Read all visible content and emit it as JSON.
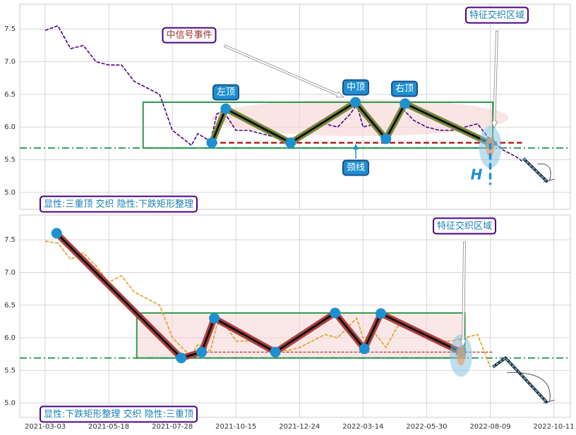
{
  "chart_data": [
    {
      "type": "pattern-line",
      "x": [
        0,
        10,
        20,
        30,
        40,
        50,
        60,
        70,
        80,
        90,
        100,
        110,
        115,
        120,
        130,
        135,
        140,
        150,
        160,
        170,
        180,
        190,
        200,
        210,
        220,
        230,
        240,
        245,
        250,
        260,
        268,
        275,
        280,
        290,
        300,
        310,
        320,
        330,
        340,
        350,
        360,
        370,
        375
      ],
      "values": [
        7.48,
        7.55,
        7.2,
        7.25,
        7.0,
        6.95,
        6.95,
        6.7,
        6.6,
        6.5,
        5.95,
        5.8,
        5.72,
        5.9,
        5.78,
        6.2,
        6.25,
        5.95,
        5.95,
        5.9,
        5.85,
        5.8,
        5.85,
        5.95,
        6.05,
        6.0,
        6.2,
        6.35,
        6.0,
        6.05,
        5.85,
        6.1,
        6.3,
        6.1,
        6.0,
        5.95,
        5.95,
        6.0,
        6.05,
        5.8,
        5.65,
        5.55,
        5.48
      ],
      "color": "#4b0082",
      "pattern": {
        "x": [
          131,
          142,
          193,
          244,
          268,
          283,
          350
        ],
        "values": [
          5.76,
          6.28,
          5.76,
          6.38,
          5.82,
          6.36,
          5.75
        ],
        "color": "#7a8a3a"
      },
      "rect": {
        "xlim": [
          77,
          352
        ],
        "ylim": [
          5.68,
          6.38
        ]
      },
      "support": 5.68,
      "neckline": {
        "xlim": [
          131,
          375
        ],
        "value": 5.76
      },
      "projection": {
        "x": [
          376,
          395
        ],
        "values": [
          5.52,
          5.16
        ]
      },
      "xlim": [
        -20,
        413
      ],
      "ylim": [
        4.74,
        7.88
      ],
      "yticks": [
        {
          "value": 5,
          "label": "5.0"
        },
        5.5,
        {
          "value": 6,
          "label": "6.0"
        },
        6.5,
        {
          "value": 7,
          "label": "7.0"
        },
        7.5
      ],
      "signal_label": "中信号事件",
      "left_top": "左顶",
      "mid_top": "中顶",
      "right_top": "右顶",
      "neck_label": "颈线",
      "zone_label": "特征交织区域",
      "height_label": "H",
      "caption": "显性:三重顶 交织 隐性:下跌矩形整理"
    },
    {
      "type": "pattern-line",
      "x": [
        0,
        10,
        20,
        30,
        40,
        50,
        60,
        70,
        80,
        90,
        100,
        110,
        115,
        120,
        130,
        135,
        140,
        150,
        160,
        170,
        180,
        190,
        200,
        210,
        220,
        230,
        240,
        245,
        250,
        260,
        268,
        275,
        280,
        290,
        300,
        310,
        320,
        330,
        340,
        350
      ],
      "values": [
        7.48,
        7.45,
        7.2,
        7.3,
        7.1,
        6.85,
        6.95,
        6.7,
        6.6,
        6.5,
        6.0,
        5.8,
        5.72,
        5.9,
        5.8,
        6.2,
        6.25,
        5.95,
        5.95,
        5.9,
        5.85,
        5.8,
        5.85,
        5.95,
        6.05,
        6.0,
        6.2,
        6.3,
        6.0,
        6.05,
        5.85,
        6.1,
        6.25,
        6.1,
        6.0,
        5.95,
        5.95,
        6.0,
        6.05,
        5.55
      ],
      "color": "#e0a020",
      "pattern": {
        "x": [
          9,
          107,
          123,
          133,
          181,
          228,
          251,
          264,
          327
        ],
        "values": [
          7.6,
          5.69,
          5.78,
          6.3,
          5.78,
          6.38,
          5.83,
          6.37,
          5.78
        ],
        "color": "#b0413e"
      },
      "rect": {
        "xlim": [
          72,
          330
        ],
        "ylim": [
          5.69,
          6.38
        ]
      },
      "support": 5.69,
      "neckline": {
        "xlim": [
          123,
          352
        ],
        "value": 5.78
      },
      "projection": {
        "x": [
          352,
          362,
          395
        ],
        "values": [
          5.55,
          5.69,
          5.0
        ]
      },
      "xlim": [
        -20,
        413
      ],
      "ylim": [
        4.78,
        7.88
      ],
      "yticks": [
        {
          "value": 5,
          "label": "5.0"
        },
        5.5,
        {
          "value": 6,
          "label": "6.0"
        },
        6.5,
        {
          "value": 7,
          "label": "7.0"
        },
        7.5
      ],
      "xticks": [
        {
          "value": 0,
          "label": "2021-03-03"
        },
        {
          "value": 50,
          "label": "2021-05-18"
        },
        {
          "value": 100,
          "label": "2021-07-28"
        },
        {
          "value": 150,
          "label": "2021-10-15"
        },
        {
          "value": 200,
          "label": "2021-12-24"
        },
        {
          "value": 250,
          "label": "2022-03-14"
        },
        {
          "value": 300,
          "label": "2022-05-30"
        },
        {
          "value": 350,
          "label": "2022-08-09"
        },
        {
          "value": 400,
          "label": "2022-10-11"
        }
      ],
      "zone_label": "特征交织区域",
      "caption": "显性:下跌矩形整理 交织 隐性:三重顶"
    }
  ]
}
